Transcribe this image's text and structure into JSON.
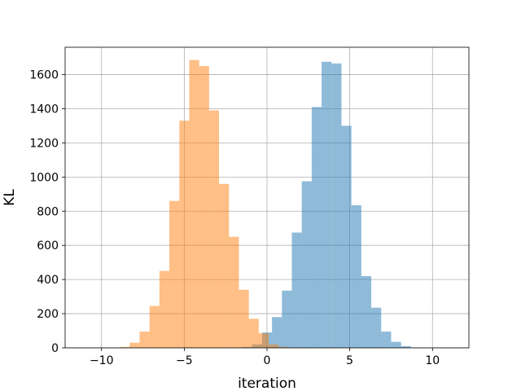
{
  "chart_data": {
    "type": "histogram",
    "title": "",
    "xlabel": "iteration",
    "ylabel": "KL",
    "xlim": [
      -12.2,
      12.2
    ],
    "ylim": [
      0,
      1760
    ],
    "xticks": [
      -10,
      -5,
      0,
      5,
      10
    ],
    "yticks": [
      0,
      200,
      400,
      600,
      800,
      1000,
      1200,
      1400,
      1600
    ],
    "grid": true,
    "series": [
      {
        "color": "#1f77b4",
        "alpha": 0.5,
        "bin_width": 0.6,
        "bins": [
          {
            "x0": -1.5,
            "count": 5
          },
          {
            "x0": -0.9,
            "count": 20
          },
          {
            "x0": -0.3,
            "count": 90
          },
          {
            "x0": 0.3,
            "count": 180
          },
          {
            "x0": 0.9,
            "count": 335
          },
          {
            "x0": 1.5,
            "count": 675
          },
          {
            "x0": 2.1,
            "count": 975
          },
          {
            "x0": 2.7,
            "count": 1410
          },
          {
            "x0": 3.3,
            "count": 1675
          },
          {
            "x0": 3.9,
            "count": 1665
          },
          {
            "x0": 4.5,
            "count": 1300
          },
          {
            "x0": 5.1,
            "count": 835
          },
          {
            "x0": 5.7,
            "count": 420
          },
          {
            "x0": 6.3,
            "count": 235
          },
          {
            "x0": 6.9,
            "count": 95
          },
          {
            "x0": 7.5,
            "count": 35
          },
          {
            "x0": 8.1,
            "count": 10
          }
        ]
      },
      {
        "color": "#ff7f0e",
        "alpha": 0.5,
        "bin_width": 0.6,
        "bins": [
          {
            "x0": -8.9,
            "count": 5
          },
          {
            "x0": -8.3,
            "count": 30
          },
          {
            "x0": -7.7,
            "count": 95
          },
          {
            "x0": -7.1,
            "count": 245
          },
          {
            "x0": -6.5,
            "count": 450
          },
          {
            "x0": -5.9,
            "count": 860
          },
          {
            "x0": -5.3,
            "count": 1330
          },
          {
            "x0": -4.7,
            "count": 1685
          },
          {
            "x0": -4.1,
            "count": 1650
          },
          {
            "x0": -3.5,
            "count": 1390
          },
          {
            "x0": -2.9,
            "count": 960
          },
          {
            "x0": -2.3,
            "count": 650
          },
          {
            "x0": -1.7,
            "count": 340
          },
          {
            "x0": -1.1,
            "count": 170
          },
          {
            "x0": -0.5,
            "count": 85
          },
          {
            "x0": 0.1,
            "count": 20
          },
          {
            "x0": 0.7,
            "count": 5
          }
        ]
      }
    ]
  }
}
